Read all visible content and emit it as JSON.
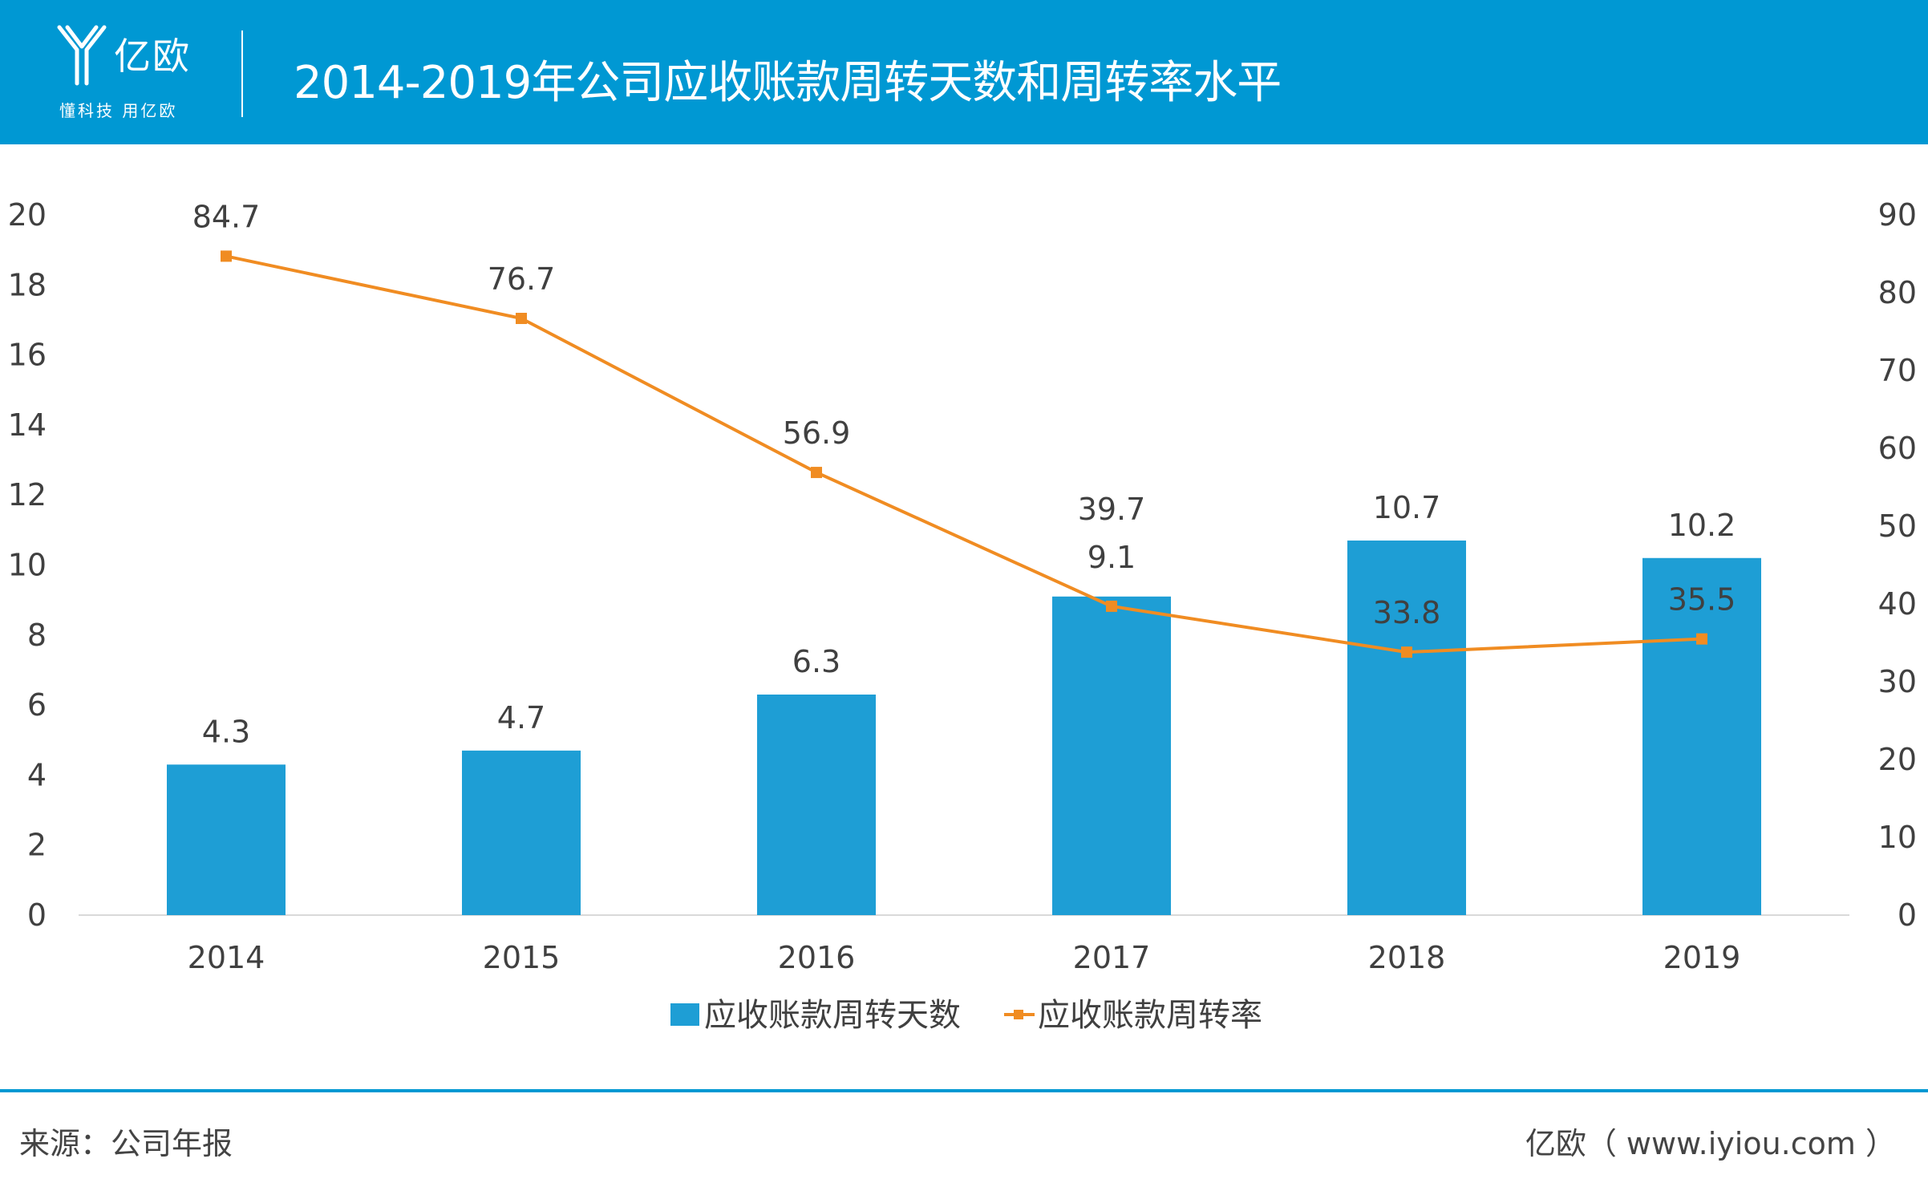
{
  "brand": {
    "name": "亿欧",
    "slogan": "懂科技 用亿欧"
  },
  "header": {
    "title": "2014-2019年公司应收账款周转天数和周转率水平"
  },
  "footer": {
    "source": "来源：公司年报",
    "credit": "亿欧（ www.iyiou.com ）"
  },
  "colors": {
    "header_bg": "#0098d3",
    "bar": "#1e9ed5",
    "line": "#f08c22",
    "axis": "#d9d9d9",
    "text": "#404040"
  },
  "chart_data": {
    "type": "bar",
    "title": "2014-2019年公司应收账款周转天数和周转率水平",
    "categories": [
      "2014",
      "2015",
      "2016",
      "2017",
      "2018",
      "2019"
    ],
    "series": [
      {
        "name": "应收账款周转天数",
        "type": "bar",
        "axis": "left",
        "values": [
          4.3,
          4.7,
          6.3,
          9.1,
          10.7,
          10.2
        ],
        "labels": [
          "4.3",
          "4.7",
          "6.3",
          "9.1",
          "10.7",
          "10.2"
        ]
      },
      {
        "name": "应收账款周转率",
        "type": "line",
        "axis": "right",
        "values": [
          84.7,
          76.7,
          56.9,
          39.7,
          33.8,
          35.5
        ],
        "labels": [
          "84.7",
          "76.7",
          "56.9",
          "39.7",
          "33.8",
          "35.5"
        ]
      }
    ],
    "y_left": {
      "min": 0,
      "max": 20,
      "step": 2,
      "ticks": [
        "0",
        "2",
        "4",
        "6",
        "8",
        "10",
        "12",
        "14",
        "16",
        "18",
        "20"
      ]
    },
    "y_right": {
      "min": 0,
      "max": 90,
      "step": 10,
      "ticks": [
        "0",
        "10",
        "20",
        "30",
        "40",
        "50",
        "60",
        "70",
        "80",
        "90"
      ]
    },
    "grid": false,
    "legend": "bottom-center"
  }
}
